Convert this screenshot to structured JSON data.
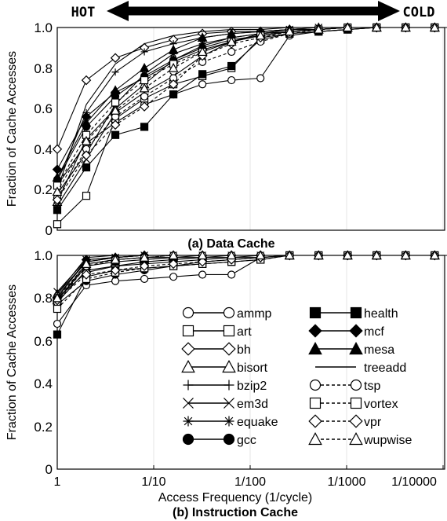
{
  "arrow": {
    "left_label": "HOT",
    "right_label": "COLD"
  },
  "chart_data": [
    {
      "type": "line",
      "title": "(a) Data Cache",
      "ylabel": "Fraction of Cache Accesses",
      "xlabel": "",
      "x_scale": "log",
      "x_reversed": true,
      "x_ticks": [],
      "y_ticks": [
        "0",
        "0.2",
        "0.4",
        "0.6",
        "0.8",
        "1.0"
      ],
      "ylim": [
        0,
        1
      ],
      "x": [
        1,
        0.5,
        0.25,
        0.125,
        0.0625,
        0.03125,
        0.015625,
        0.0078125,
        0.00390625,
        0.001953125,
        0.0009765625,
        0.00048828125,
        0.000244140625,
        0.0001220703125,
        6.103515625e-05
      ],
      "series": [
        {
          "name": "ammp",
          "marker": "circle-open",
          "values": [
            0.22,
            0.43,
            0.53,
            0.62,
            0.67,
            0.72,
            0.74,
            0.75,
            0.96,
            0.98,
            0.99,
            1.0,
            1.0,
            1.0,
            1.0
          ]
        },
        {
          "name": "art",
          "marker": "square-open",
          "values": [
            0.03,
            0.17,
            0.55,
            0.65,
            0.72,
            0.76,
            0.8,
            0.95,
            0.97,
            0.98,
            0.99,
            1.0,
            1.0,
            1.0,
            1.0
          ]
        },
        {
          "name": "bh",
          "marker": "diamond-open",
          "values": [
            0.4,
            0.74,
            0.85,
            0.9,
            0.94,
            0.97,
            0.98,
            0.98,
            0.99,
            0.99,
            1.0,
            1.0,
            1.0,
            1.0,
            1.0
          ]
        },
        {
          "name": "bisort",
          "marker": "triangle-open",
          "values": [
            0.14,
            0.45,
            0.6,
            0.72,
            0.84,
            0.91,
            0.95,
            0.97,
            0.98,
            0.99,
            1.0,
            1.0,
            1.0,
            1.0,
            1.0
          ]
        },
        {
          "name": "bzip2",
          "marker": "plus",
          "values": [
            0.24,
            0.58,
            0.78,
            0.88,
            0.92,
            0.95,
            0.97,
            0.98,
            0.99,
            0.99,
            1.0,
            1.0,
            1.0,
            1.0,
            1.0
          ]
        },
        {
          "name": "em3d",
          "marker": "cross",
          "values": [
            0.12,
            0.35,
            0.58,
            0.68,
            0.76,
            0.86,
            0.93,
            0.97,
            0.99,
            1.0,
            1.0,
            1.0,
            1.0,
            1.0,
            1.0
          ]
        },
        {
          "name": "equake",
          "marker": "asterisk",
          "values": [
            0.18,
            0.38,
            0.62,
            0.77,
            0.87,
            0.92,
            0.95,
            0.97,
            0.98,
            0.99,
            1.0,
            1.0,
            1.0,
            1.0,
            1.0
          ]
        },
        {
          "name": "gcc",
          "marker": "circle-filled",
          "values": [
            0.25,
            0.51,
            0.66,
            0.76,
            0.84,
            0.9,
            0.94,
            0.96,
            0.98,
            0.99,
            1.0,
            1.0,
            1.0,
            1.0,
            1.0
          ]
        },
        {
          "name": "health",
          "marker": "square-filled",
          "values": [
            0.1,
            0.31,
            0.47,
            0.51,
            0.67,
            0.77,
            0.81,
            0.94,
            0.97,
            0.98,
            0.99,
            1.0,
            1.0,
            1.0,
            1.0
          ]
        },
        {
          "name": "mcf",
          "marker": "diamond-filled",
          "values": [
            0.3,
            0.56,
            0.68,
            0.75,
            0.83,
            0.89,
            0.93,
            0.96,
            0.98,
            0.99,
            1.0,
            1.0,
            1.0,
            1.0,
            1.0
          ]
        },
        {
          "name": "mesa",
          "marker": "triangle-filled",
          "values": [
            0.26,
            0.53,
            0.69,
            0.8,
            0.89,
            0.95,
            0.97,
            0.98,
            0.99,
            1.0,
            1.0,
            1.0,
            1.0,
            1.0,
            1.0
          ]
        },
        {
          "name": "treeadd",
          "marker": "none",
          "values": [
            0.2,
            0.62,
            0.82,
            0.92,
            0.96,
            0.98,
            0.99,
            0.99,
            1.0,
            1.0,
            1.0,
            1.0,
            1.0,
            1.0,
            1.0
          ]
        },
        {
          "name": "tsp",
          "marker": "circle-dashed",
          "values": [
            0.16,
            0.4,
            0.56,
            0.66,
            0.75,
            0.83,
            0.88,
            0.93,
            0.97,
            0.99,
            1.0,
            1.0,
            1.0,
            1.0,
            1.0
          ]
        },
        {
          "name": "vortex",
          "marker": "square-dashed",
          "values": [
            0.22,
            0.47,
            0.63,
            0.74,
            0.82,
            0.88,
            0.93,
            0.96,
            0.98,
            0.99,
            1.0,
            1.0,
            1.0,
            1.0,
            1.0
          ]
        },
        {
          "name": "vpr",
          "marker": "diamond-dashed",
          "values": [
            0.15,
            0.37,
            0.52,
            0.61,
            0.72,
            0.86,
            0.92,
            0.95,
            0.98,
            0.99,
            1.0,
            1.0,
            1.0,
            1.0,
            1.0
          ]
        },
        {
          "name": "wupwise",
          "marker": "triangle-dashed",
          "values": [
            0.19,
            0.44,
            0.59,
            0.7,
            0.8,
            0.88,
            0.93,
            0.96,
            0.98,
            0.99,
            1.0,
            1.0,
            1.0,
            1.0,
            1.0
          ]
        }
      ]
    },
    {
      "type": "line",
      "title": "(b) Instruction Cache",
      "ylabel": "Fraction of Cache Accesses",
      "xlabel": "Access Frequency (1/cycle)",
      "x_scale": "log",
      "x_reversed": true,
      "x_ticks": [
        "1",
        "1/10",
        "1/100",
        "1/1000",
        "1/10000"
      ],
      "y_ticks": [
        "0",
        "0.2",
        "0.4",
        "0.6",
        "0.8",
        "1.0"
      ],
      "ylim": [
        0,
        1
      ],
      "legend": "inside, lower-right",
      "x": [
        1,
        0.5,
        0.25,
        0.125,
        0.0625,
        0.03125,
        0.015625,
        0.0078125,
        0.00390625,
        0.001953125,
        0.0009765625,
        0.00048828125,
        0.000244140625,
        0.0001220703125,
        6.103515625e-05
      ],
      "series": [
        {
          "name": "ammp",
          "marker": "circle-open",
          "values": [
            0.68,
            0.86,
            0.88,
            0.89,
            0.9,
            0.91,
            0.91,
            0.99,
            1.0,
            1.0,
            1.0,
            1.0,
            1.0,
            1.0,
            1.0
          ]
        },
        {
          "name": "art",
          "marker": "square-open",
          "values": [
            0.78,
            0.93,
            0.95,
            0.96,
            0.97,
            0.98,
            0.99,
            0.99,
            1.0,
            1.0,
            1.0,
            1.0,
            1.0,
            1.0,
            1.0
          ]
        },
        {
          "name": "bh",
          "marker": "diamond-open",
          "values": [
            0.8,
            0.92,
            0.95,
            0.97,
            0.98,
            0.99,
            0.99,
            1.0,
            1.0,
            1.0,
            1.0,
            1.0,
            1.0,
            1.0,
            1.0
          ]
        },
        {
          "name": "bisort",
          "marker": "triangle-open",
          "values": [
            0.82,
            0.97,
            0.99,
            1.0,
            1.0,
            1.0,
            1.0,
            1.0,
            1.0,
            1.0,
            1.0,
            1.0,
            1.0,
            1.0,
            1.0
          ]
        },
        {
          "name": "bzip2",
          "marker": "plus",
          "values": [
            0.79,
            0.96,
            0.98,
            0.99,
            0.99,
            1.0,
            1.0,
            1.0,
            1.0,
            1.0,
            1.0,
            1.0,
            1.0,
            1.0,
            1.0
          ]
        },
        {
          "name": "em3d",
          "marker": "cross",
          "values": [
            0.83,
            0.98,
            0.99,
            1.0,
            1.0,
            1.0,
            1.0,
            1.0,
            1.0,
            1.0,
            1.0,
            1.0,
            1.0,
            1.0,
            1.0
          ]
        },
        {
          "name": "equake",
          "marker": "asterisk",
          "values": [
            0.81,
            0.97,
            0.99,
            1.0,
            1.0,
            1.0,
            1.0,
            1.0,
            1.0,
            1.0,
            1.0,
            1.0,
            1.0,
            1.0,
            1.0
          ]
        },
        {
          "name": "gcc",
          "marker": "circle-filled",
          "values": [
            0.77,
            0.88,
            0.91,
            0.93,
            0.95,
            0.97,
            0.98,
            0.99,
            1.0,
            1.0,
            1.0,
            1.0,
            1.0,
            1.0,
            1.0
          ]
        },
        {
          "name": "health",
          "marker": "square-filled",
          "values": [
            0.63,
            0.9,
            0.93,
            0.94,
            0.95,
            0.96,
            0.97,
            0.98,
            1.0,
            1.0,
            1.0,
            1.0,
            1.0,
            1.0,
            1.0
          ]
        },
        {
          "name": "mcf",
          "marker": "diamond-filled",
          "values": [
            0.8,
            0.98,
            0.99,
            1.0,
            1.0,
            1.0,
            1.0,
            1.0,
            1.0,
            1.0,
            1.0,
            1.0,
            1.0,
            1.0,
            1.0
          ]
        },
        {
          "name": "mesa",
          "marker": "triangle-filled",
          "values": [
            0.79,
            0.95,
            0.97,
            0.98,
            0.99,
            0.99,
            1.0,
            1.0,
            1.0,
            1.0,
            1.0,
            1.0,
            1.0,
            1.0,
            1.0
          ]
        },
        {
          "name": "treeadd",
          "marker": "none",
          "values": [
            0.82,
            0.99,
            1.0,
            1.0,
            1.0,
            1.0,
            1.0,
            1.0,
            1.0,
            1.0,
            1.0,
            1.0,
            1.0,
            1.0,
            1.0
          ]
        },
        {
          "name": "tsp",
          "marker": "circle-dashed",
          "values": [
            0.78,
            0.95,
            0.98,
            0.99,
            1.0,
            1.0,
            1.0,
            1.0,
            1.0,
            1.0,
            1.0,
            1.0,
            1.0,
            1.0,
            1.0
          ]
        },
        {
          "name": "vortex",
          "marker": "square-dashed",
          "values": [
            0.75,
            0.89,
            0.92,
            0.94,
            0.95,
            0.96,
            0.97,
            0.98,
            1.0,
            1.0,
            1.0,
            1.0,
            1.0,
            1.0,
            1.0
          ]
        },
        {
          "name": "vpr",
          "marker": "diamond-dashed",
          "values": [
            0.79,
            0.91,
            0.93,
            0.95,
            0.96,
            0.97,
            0.98,
            0.99,
            1.0,
            1.0,
            1.0,
            1.0,
            1.0,
            1.0,
            1.0
          ]
        },
        {
          "name": "wupwise",
          "marker": "triangle-dashed",
          "values": [
            0.8,
            0.96,
            0.98,
            0.99,
            1.0,
            1.0,
            1.0,
            1.0,
            1.0,
            1.0,
            1.0,
            1.0,
            1.0,
            1.0,
            1.0
          ]
        }
      ]
    }
  ]
}
